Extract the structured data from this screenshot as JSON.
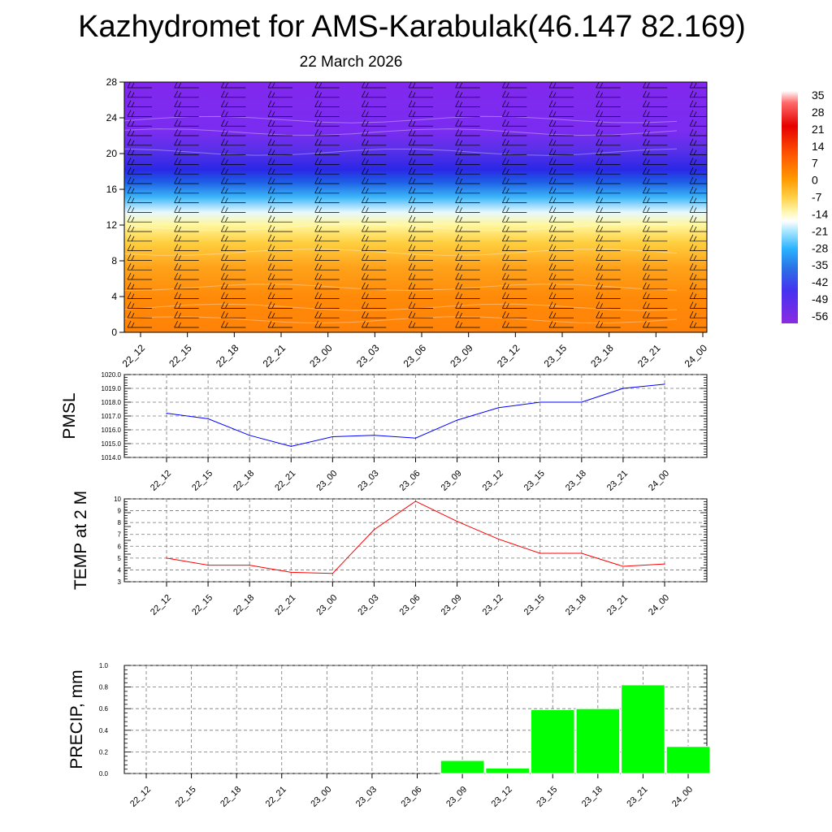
{
  "title": "Kazhydromet for AMS-Karabulak(46.147 82.169)",
  "subtitle": "22 March 2026",
  "colorbar": {
    "labels": [
      "35",
      "28",
      "21",
      "14",
      "7",
      "0",
      "-7",
      "-14",
      "-21",
      "-28",
      "-35",
      "-42",
      "-49",
      "-56"
    ]
  },
  "chart_data": [
    {
      "type": "heatmap",
      "name": "Temperature cross-section with wind barbs",
      "x": [
        "22_12",
        "22_15",
        "22_18",
        "22_21",
        "23_00",
        "23_03",
        "23_06",
        "23_09",
        "23_12",
        "23_15",
        "23_18",
        "23_21",
        "24_00"
      ],
      "yticks": [
        0,
        4,
        8,
        12,
        16,
        20,
        24,
        28
      ],
      "ylim": [
        0,
        28
      ],
      "colorbar_range": [
        -56,
        35
      ]
    },
    {
      "type": "line",
      "ylabel": "PMSL",
      "x": [
        "22_12",
        "22_15",
        "22_18",
        "22_21",
        "23_00",
        "23_03",
        "23_06",
        "23_09",
        "23_12",
        "23_15",
        "23_18",
        "23_21",
        "24_00"
      ],
      "values": [
        1017.2,
        1016.8,
        1015.6,
        1014.8,
        1015.5,
        1015.6,
        1015.4,
        1016.7,
        1017.6,
        1018.0,
        1018.0,
        1019.0,
        1019.3
      ],
      "ylim": [
        1014.0,
        1020.0
      ],
      "yticks": [
        "1014.0",
        "1015.0",
        "1016.0",
        "1017.0",
        "1018.0",
        "1019.0",
        "1020.0"
      ],
      "color": "#0000ff"
    },
    {
      "type": "line",
      "ylabel": "TEMP at 2 M",
      "x": [
        "22_12",
        "22_15",
        "22_18",
        "22_21",
        "23_00",
        "23_03",
        "23_06",
        "23_09",
        "23_12",
        "23_15",
        "23_18",
        "23_21",
        "24_00"
      ],
      "values": [
        5.0,
        4.4,
        4.4,
        3.8,
        3.7,
        7.4,
        9.8,
        8.1,
        6.6,
        5.4,
        5.4,
        4.3,
        4.5
      ],
      "ylim": [
        3,
        10
      ],
      "yticks": [
        "3",
        "4",
        "5",
        "6",
        "7",
        "8",
        "9",
        "10"
      ],
      "color": "#ff0000"
    },
    {
      "type": "bar",
      "ylabel": "PRECIP, mm",
      "categories": [
        "22_12",
        "22_15",
        "22_18",
        "22_21",
        "23_00",
        "23_03",
        "23_06",
        "23_09",
        "23_12",
        "23_15",
        "23_18",
        "23_21",
        "24_00"
      ],
      "values": [
        0,
        0,
        0,
        0,
        0,
        0,
        0,
        0.12,
        0.05,
        0.59,
        0.6,
        0.82,
        0.25
      ],
      "ylim": [
        0,
        1.0
      ],
      "yticks": [
        "0.0",
        "0.2",
        "0.4",
        "0.6",
        "0.8",
        "1.0"
      ],
      "color": "#00ff00"
    }
  ]
}
